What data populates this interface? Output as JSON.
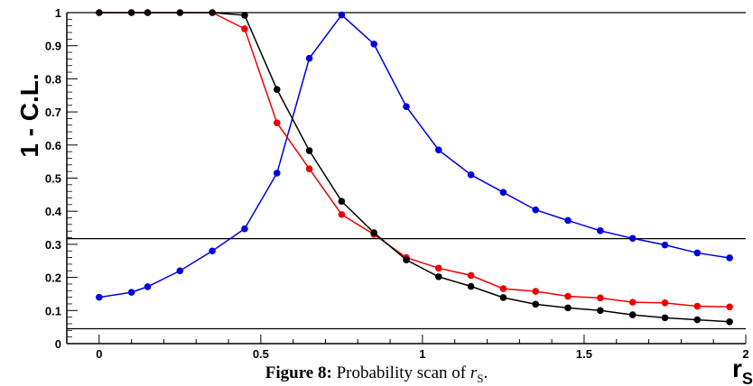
{
  "chart_data": {
    "type": "line",
    "xlabel": "r",
    "xlabel_sub": "S",
    "ylabel": "1 - C.L.",
    "xlim": [
      -0.1,
      2.0
    ],
    "ylim": [
      0,
      1
    ],
    "x_ticks": [
      "0",
      "0.5",
      "1",
      "1.5",
      "2"
    ],
    "x_tick_values": [
      0,
      0.5,
      1,
      1.5,
      2
    ],
    "y_ticks": [
      "0",
      "0.1",
      "0.2",
      "0.3",
      "0.4",
      "0.5",
      "0.6",
      "0.7",
      "0.8",
      "0.9",
      "1"
    ],
    "y_tick_values": [
      0,
      0.1,
      0.2,
      0.3,
      0.4,
      0.5,
      0.6,
      0.7,
      0.8,
      0.9,
      1
    ],
    "reference_lines": [
      1.0,
      0.317,
      0.045
    ],
    "series": [
      {
        "color": "#0000dd",
        "x": [
          0,
          0.1,
          0.15,
          0.25,
          0.35,
          0.45,
          0.55,
          0.65,
          0.75,
          0.85,
          0.95,
          1.05,
          1.15,
          1.25,
          1.35,
          1.45,
          1.55,
          1.65,
          1.75,
          1.85,
          1.95
        ],
        "y": [
          0.14,
          0.155,
          0.172,
          0.22,
          0.28,
          0.347,
          0.515,
          0.862,
          0.993,
          0.905,
          0.716,
          0.585,
          0.51,
          0.457,
          0.404,
          0.372,
          0.341,
          0.318,
          0.298,
          0.274,
          0.259
        ]
      },
      {
        "color": "#ee0000",
        "x": [
          0,
          0.1,
          0.15,
          0.25,
          0.35,
          0.45,
          0.55,
          0.65,
          0.75,
          0.85,
          0.95,
          1.05,
          1.15,
          1.25,
          1.35,
          1.45,
          1.55,
          1.65,
          1.75,
          1.85,
          1.95
        ],
        "y": [
          1.0,
          1.0,
          1.0,
          1.0,
          1.0,
          0.951,
          0.667,
          0.528,
          0.39,
          0.33,
          0.26,
          0.228,
          0.206,
          0.166,
          0.158,
          0.143,
          0.138,
          0.125,
          0.123,
          0.113,
          0.111
        ]
      },
      {
        "color": "#000000",
        "x": [
          0,
          0.1,
          0.15,
          0.25,
          0.35,
          0.45,
          0.55,
          0.65,
          0.75,
          0.85,
          0.95,
          1.05,
          1.15,
          1.25,
          1.35,
          1.45,
          1.55,
          1.65,
          1.75,
          1.85,
          1.95
        ],
        "y": [
          1.0,
          1.0,
          1.0,
          1.0,
          1.0,
          0.992,
          0.768,
          0.583,
          0.43,
          0.335,
          0.253,
          0.202,
          0.173,
          0.139,
          0.119,
          0.108,
          0.1,
          0.087,
          0.078,
          0.072,
          0.066
        ]
      }
    ]
  },
  "caption": {
    "label": "Figure 8:",
    "text": "Probability scan of",
    "symbol": "r",
    "symbol_sub": "S",
    "end": "."
  }
}
